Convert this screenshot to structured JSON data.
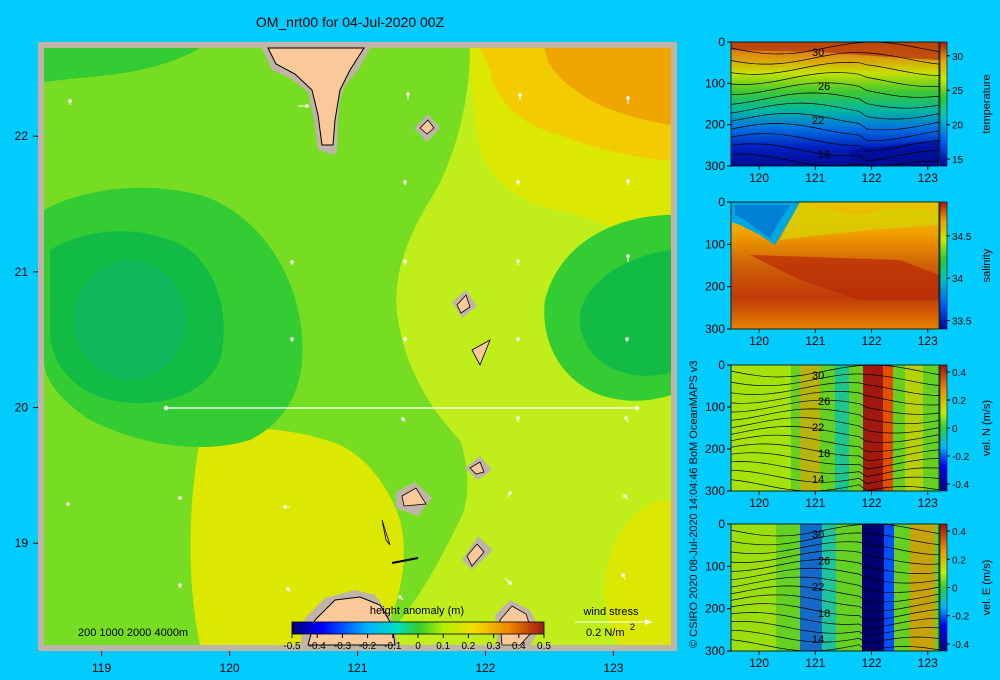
{
  "title": "OM_nrt00 for 04-Jul-2020 00Z",
  "credit": "© CSIRO 2020   08-Jul-2020 14:04:46 BoM OceanMAPS v3",
  "depth_scale_label": "200  1000  2000  4000m",
  "colorbar": {
    "label": "height anomaly (m)",
    "ticks": [
      "-0.5",
      "-0.4",
      "-0.3",
      "-0.2",
      "-0.1",
      "0",
      "0.1",
      "0.2",
      "0.3",
      "0.4",
      "0.5"
    ]
  },
  "wind_stress": {
    "label": "wind stress",
    "scale": "0.2 N/m",
    "superscript": "2"
  },
  "colors": {
    "background": "#00ccff",
    "land": "#f9c99a",
    "shelf": "#c0b4a8"
  },
  "chart_data": [
    {
      "type": "heatmap",
      "name": "height anomaly map",
      "x_ticks": [
        "119",
        "120",
        "121",
        "122",
        "123"
      ],
      "y_ticks": [
        "22",
        "21",
        "20",
        "19"
      ],
      "xlim": [
        118.55,
        123.45
      ],
      "ylim": [
        18.25,
        22.65
      ],
      "colorbar_label": "height anomaly (m)",
      "colorbar_range": [
        -0.5,
        0.5
      ],
      "section_line": {
        "lon": [
          119.5,
          123.2
        ],
        "lat": [
          20.0,
          20.0
        ]
      },
      "highs": [
        {
          "lon": [
            121.8,
            123.4
          ],
          "lat": [
            22.0,
            22.65
          ],
          "value": 0.35
        }
      ],
      "lows": [
        {
          "lon": 119.1,
          "lat": 20.55,
          "value": -0.02
        },
        {
          "lon": 123.1,
          "lat": 20.6,
          "value": 0.0
        }
      ]
    },
    {
      "type": "heatmap",
      "name": "temperature section",
      "x_ticks": [
        "120",
        "121",
        "122",
        "123"
      ],
      "y_ticks": [
        "0",
        "100",
        "200",
        "300"
      ],
      "xlim": [
        119.5,
        123.2
      ],
      "ylim": [
        0,
        300
      ],
      "colorbar_label": "temperature",
      "colorbar_ticks": [
        "30",
        "25",
        "20",
        "15"
      ],
      "colorbar_range": [
        14,
        32
      ],
      "contour_labels": [
        "30",
        "26",
        "22",
        "18"
      ]
    },
    {
      "type": "heatmap",
      "name": "salinity section",
      "x_ticks": [
        "120",
        "121",
        "122",
        "123"
      ],
      "y_ticks": [
        "0",
        "100",
        "200",
        "300"
      ],
      "xlim": [
        119.5,
        123.2
      ],
      "ylim": [
        0,
        300
      ],
      "colorbar_label": "salinity",
      "colorbar_ticks": [
        "34.5",
        "34",
        "33.5"
      ],
      "colorbar_range": [
        33.4,
        34.9
      ]
    },
    {
      "type": "heatmap",
      "name": "northward velocity section",
      "x_ticks": [
        "120",
        "121",
        "122",
        "123"
      ],
      "y_ticks": [
        "0",
        "100",
        "200",
        "300"
      ],
      "xlim": [
        119.5,
        123.2
      ],
      "ylim": [
        0,
        300
      ],
      "colorbar_label": "vel. N  (m/s)",
      "colorbar_ticks": [
        "0.4",
        "0.2",
        "0",
        "-0.2",
        "-0.4"
      ],
      "colorbar_range": [
        -0.45,
        0.45
      ],
      "contour_labels": [
        "30",
        "26",
        "22",
        "18",
        "14"
      ]
    },
    {
      "type": "heatmap",
      "name": "eastward velocity section",
      "x_ticks": [
        "120",
        "121",
        "122",
        "123"
      ],
      "y_ticks": [
        "0",
        "100",
        "200",
        "300"
      ],
      "xlim": [
        119.5,
        123.2
      ],
      "ylim": [
        0,
        300
      ],
      "colorbar_label": "vel. E  (m/s)",
      "colorbar_ticks": [
        "0.4",
        "0.2",
        "0",
        "-0.2",
        "-0.4"
      ],
      "colorbar_range": [
        -0.45,
        0.45
      ],
      "contour_labels": [
        "30",
        "26",
        "22",
        "18",
        "14"
      ]
    }
  ]
}
